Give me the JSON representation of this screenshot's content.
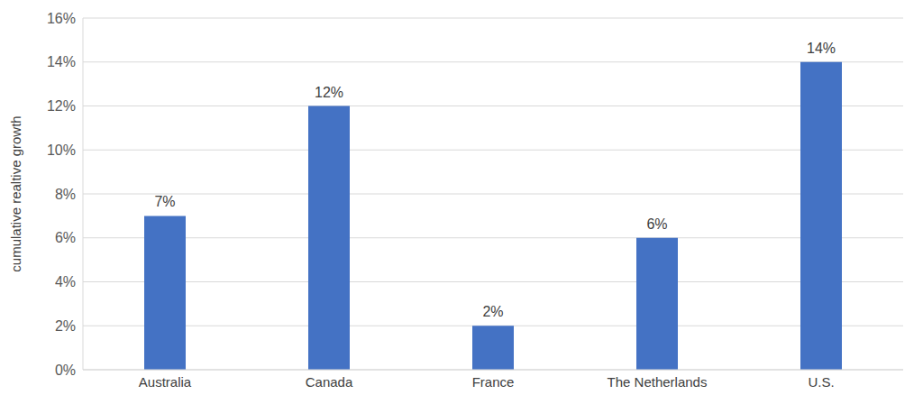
{
  "chart_data": {
    "type": "bar",
    "y_label": "cumulative realtive growth",
    "categories": [
      "Australia",
      "Canada",
      "France",
      "The Netherlands",
      "U.S."
    ],
    "values": [
      7,
      12,
      2,
      6,
      14
    ],
    "value_labels": [
      "7%",
      "12%",
      "2%",
      "6%",
      "14%"
    ],
    "color": "#4472c4",
    "ylim": [
      0,
      16
    ],
    "yticks": [
      {
        "value": 0,
        "label": "0%"
      },
      {
        "value": 2,
        "label": "2%"
      },
      {
        "value": 4,
        "label": "4%"
      },
      {
        "value": 6,
        "label": "6%"
      },
      {
        "value": 8,
        "label": "8%"
      },
      {
        "value": 10,
        "label": "10%"
      },
      {
        "value": 12,
        "label": "12%"
      },
      {
        "value": 14,
        "label": "14%"
      },
      {
        "value": 16,
        "label": "16%"
      }
    ],
    "grid": true,
    "data_labels": true
  }
}
